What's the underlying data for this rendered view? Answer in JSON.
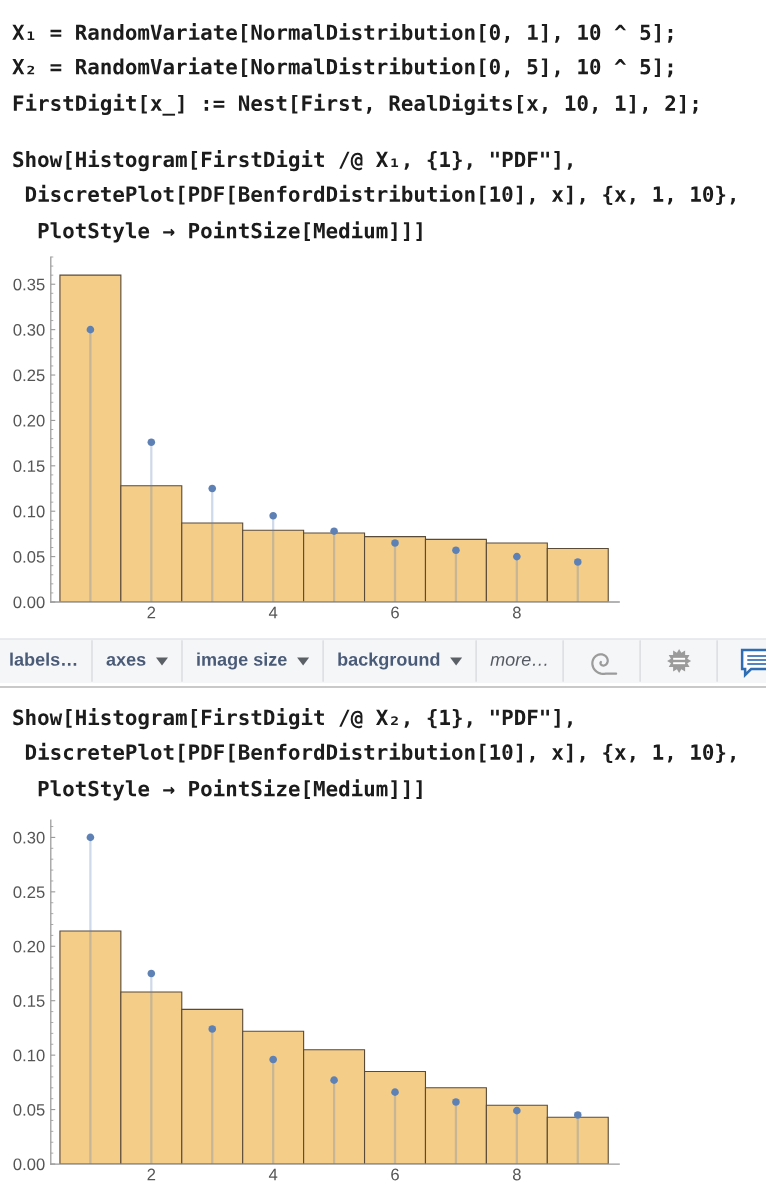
{
  "chart_data": [
    {
      "type": "histogram",
      "title": "Show[Histogram[FirstDigit /@ X₁, {1}, \"PDF\"],\n DiscretePlot[PDF[BenfordDistribution[10], x], {x, 1, 10},\n  PlotStyle → PointSize[Medium]]]",
      "annotations": [
        "X₁ = RandomVariate[NormalDistribution[0, 1], 10 ^ 5];\nX₂ = RandomVariate[NormalDistribution[0, 5], 10 ^ 5];\nFirstDigit[x_] := Nest[First, RealDigits[x, 10, 1], 2];",
        "labels…",
        "axes",
        "image size",
        "background",
        "more…"
      ],
      "bins": [
        0.5,
        1.5,
        2.5,
        3.5,
        4.5,
        5.5,
        6.5,
        7.5,
        8.5,
        9.5
      ],
      "series": [
        {
          "type": "histogram",
          "color": "#f4cd88",
          "values": [
            0.36,
            0.128,
            0.087,
            0.079,
            0.076,
            0.072,
            0.069,
            0.065,
            0.059
          ]
        },
        {
          "type": "lollipop",
          "color": "#5e81b5",
          "x": [
            1,
            2,
            3,
            4,
            5,
            6,
            7,
            8,
            9
          ],
          "values": [
            0.3,
            0.176,
            0.125,
            0.095,
            0.078,
            0.065,
            0.057,
            0.05,
            0.044
          ]
        }
      ],
      "marker": "circle",
      "xlim": [
        0.35,
        9.68
      ],
      "xticks": [
        2,
        4,
        6,
        8
      ],
      "ylim": [
        0,
        0.38
      ],
      "yticks": [
        {
          "value": 0,
          "label": "0.00"
        },
        0.05,
        {
          "value": 0.1,
          "label": "0.10"
        },
        0.15,
        {
          "value": 0.2,
          "label": "0.20"
        },
        0.25,
        {
          "value": 0.3,
          "label": "0.30"
        },
        0.35
      ]
    },
    {
      "type": "histogram",
      "title": "Show[Histogram[FirstDigit /@ X₂, {1}, \"PDF\"],\n DiscretePlot[PDF[BenfordDistribution[10], x], {x, 1, 10},\n  PlotStyle → PointSize[Medium]]]",
      "bins": [
        0.5,
        1.5,
        2.5,
        3.5,
        4.5,
        5.5,
        6.5,
        7.5,
        8.5,
        9.5
      ],
      "series": [
        {
          "type": "histogram",
          "color": "#f4cd88",
          "values": [
            0.214,
            0.158,
            0.142,
            0.122,
            0.105,
            0.085,
            0.07,
            0.054,
            0.043
          ]
        },
        {
          "type": "lollipop",
          "color": "#5e81b5",
          "x": [
            1,
            2,
            3,
            4,
            5,
            6,
            7,
            8,
            9
          ],
          "values": [
            0.3,
            0.175,
            0.124,
            0.096,
            0.077,
            0.066,
            0.057,
            0.049,
            0.045
          ]
        }
      ],
      "marker": "circle",
      "xlim": [
        0.35,
        9.68
      ],
      "xticks": [
        2,
        4,
        6,
        8
      ],
      "ylim": [
        0,
        0.316
      ],
      "yticks": [
        {
          "value": 0,
          "label": "0.00"
        },
        0.05,
        {
          "value": 0.1,
          "label": "0.10"
        },
        0.15,
        {
          "value": 0.2,
          "label": "0.20"
        },
        0.25,
        {
          "value": 0.3,
          "label": "0.30"
        }
      ]
    }
  ]
}
